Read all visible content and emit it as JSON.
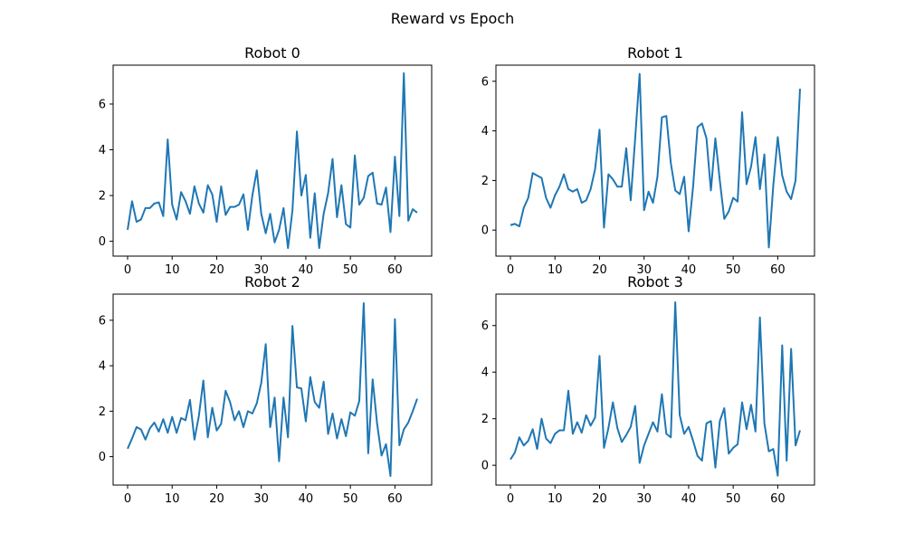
{
  "figure": {
    "suptitle": "Reward vs Epoch",
    "line_color": "#1f77b4"
  },
  "chart_data": [
    {
      "type": "line",
      "title": "Robot 0",
      "xlabel": "",
      "ylabel": "",
      "xlim": [
        -3.25,
        68.25
      ],
      "ylim": [
        -0.65,
        7.7
      ],
      "xticks": [
        0,
        10,
        20,
        30,
        40,
        50,
        60
      ],
      "yticks": [
        0,
        2,
        4,
        6
      ],
      "grid": false,
      "x": [
        0,
        1,
        2,
        3,
        4,
        5,
        6,
        7,
        8,
        9,
        10,
        11,
        12,
        13,
        14,
        15,
        16,
        17,
        18,
        19,
        20,
        21,
        22,
        23,
        24,
        25,
        26,
        27,
        28,
        29,
        30,
        31,
        32,
        33,
        34,
        35,
        36,
        37,
        38,
        39,
        40,
        41,
        42,
        43,
        44,
        45,
        46,
        47,
        48,
        49,
        50,
        51,
        52,
        53,
        54,
        55,
        56,
        57,
        58,
        59,
        60,
        61,
        62,
        63,
        64,
        65
      ],
      "series": [
        {
          "values": [
            0.5,
            1.75,
            0.85,
            0.95,
            1.45,
            1.45,
            1.65,
            1.7,
            1.1,
            4.45,
            1.6,
            0.95,
            2.15,
            1.75,
            1.2,
            2.4,
            1.65,
            1.25,
            2.45,
            2.05,
            0.85,
            2.4,
            1.15,
            1.5,
            1.5,
            1.6,
            2.05,
            0.5,
            2.0,
            3.1,
            1.2,
            0.35,
            1.2,
            -0.05,
            0.5,
            1.45,
            -0.3,
            1.35,
            4.8,
            2.0,
            2.9,
            0.15,
            2.1,
            -0.3,
            1.2,
            2.1,
            3.6,
            1.05,
            2.45,
            0.75,
            0.6,
            3.75,
            1.6,
            1.9,
            2.85,
            3.0,
            1.65,
            1.6,
            2.35,
            0.4,
            3.7,
            1.1,
            7.35,
            0.9,
            1.4,
            1.25
          ]
        }
      ]
    },
    {
      "type": "line",
      "title": "Robot 1",
      "xlabel": "",
      "ylabel": "",
      "xlim": [
        -3.25,
        68.25
      ],
      "ylim": [
        -1.05,
        6.65
      ],
      "xticks": [
        0,
        10,
        20,
        30,
        40,
        50,
        60
      ],
      "yticks": [
        0,
        2,
        4,
        6
      ],
      "grid": false,
      "x": [
        0,
        1,
        2,
        3,
        4,
        5,
        6,
        7,
        8,
        9,
        10,
        11,
        12,
        13,
        14,
        15,
        16,
        17,
        18,
        19,
        20,
        21,
        22,
        23,
        24,
        25,
        26,
        27,
        28,
        29,
        30,
        31,
        32,
        33,
        34,
        35,
        36,
        37,
        38,
        39,
        40,
        41,
        42,
        43,
        44,
        45,
        46,
        47,
        48,
        49,
        50,
        51,
        52,
        53,
        54,
        55,
        56,
        57,
        58,
        59,
        60,
        61,
        62,
        63,
        64,
        65
      ],
      "series": [
        {
          "values": [
            0.2,
            0.25,
            0.15,
            0.9,
            1.3,
            2.3,
            2.2,
            2.1,
            1.3,
            0.9,
            1.4,
            1.75,
            2.25,
            1.65,
            1.55,
            1.65,
            1.1,
            1.2,
            1.65,
            2.45,
            4.05,
            0.1,
            2.25,
            2.05,
            1.75,
            1.75,
            3.3,
            1.2,
            3.7,
            6.3,
            0.8,
            1.55,
            1.1,
            2.15,
            4.55,
            4.6,
            2.7,
            1.6,
            1.45,
            2.15,
            -0.05,
            1.75,
            4.15,
            4.3,
            3.7,
            1.6,
            3.7,
            2.0,
            0.45,
            0.75,
            1.3,
            1.15,
            4.75,
            1.85,
            2.55,
            3.75,
            1.65,
            3.05,
            -0.7,
            1.8,
            3.75,
            2.2,
            1.55,
            1.25,
            2.0,
            5.7
          ]
        }
      ]
    },
    {
      "type": "line",
      "title": "Robot 2",
      "xlabel": "",
      "ylabel": "",
      "xlim": [
        -3.25,
        68.25
      ],
      "ylim": [
        -1.25,
        7.15
      ],
      "xticks": [
        0,
        10,
        20,
        30,
        40,
        50,
        60
      ],
      "yticks": [
        0,
        2,
        4,
        6
      ],
      "grid": false,
      "x": [
        0,
        1,
        2,
        3,
        4,
        5,
        6,
        7,
        8,
        9,
        10,
        11,
        12,
        13,
        14,
        15,
        16,
        17,
        18,
        19,
        20,
        21,
        22,
        23,
        24,
        25,
        26,
        27,
        28,
        29,
        30,
        31,
        32,
        33,
        34,
        35,
        36,
        37,
        38,
        39,
        40,
        41,
        42,
        43,
        44,
        45,
        46,
        47,
        48,
        49,
        50,
        51,
        52,
        53,
        54,
        55,
        56,
        57,
        58,
        59,
        60,
        61,
        62,
        63,
        64,
        65
      ],
      "series": [
        {
          "values": [
            0.35,
            0.8,
            1.3,
            1.2,
            0.75,
            1.25,
            1.5,
            1.1,
            1.65,
            1.05,
            1.75,
            1.05,
            1.7,
            1.6,
            2.5,
            0.75,
            1.8,
            3.35,
            0.85,
            2.15,
            1.15,
            1.45,
            2.9,
            2.4,
            1.6,
            2.0,
            1.3,
            2.0,
            1.9,
            2.35,
            3.25,
            4.95,
            1.3,
            2.6,
            -0.2,
            2.6,
            0.85,
            5.75,
            3.05,
            3.0,
            1.55,
            3.5,
            2.4,
            2.15,
            3.3,
            1.0,
            1.9,
            0.8,
            1.65,
            0.9,
            1.95,
            1.8,
            2.45,
            6.75,
            0.15,
            3.4,
            1.45,
            0.05,
            0.55,
            -0.85,
            6.05,
            0.5,
            1.2,
            1.5,
            2.0,
            2.55
          ]
        }
      ]
    },
    {
      "type": "line",
      "title": "Robot 3",
      "xlabel": "",
      "ylabel": "",
      "xlim": [
        -3.25,
        68.25
      ],
      "ylim": [
        -0.85,
        7.35
      ],
      "xticks": [
        0,
        10,
        20,
        30,
        40,
        50,
        60
      ],
      "yticks": [
        0,
        2,
        4,
        6
      ],
      "grid": false,
      "x": [
        0,
        1,
        2,
        3,
        4,
        5,
        6,
        7,
        8,
        9,
        10,
        11,
        12,
        13,
        14,
        15,
        16,
        17,
        18,
        19,
        20,
        21,
        22,
        23,
        24,
        25,
        26,
        27,
        28,
        29,
        30,
        31,
        32,
        33,
        34,
        35,
        36,
        37,
        38,
        39,
        40,
        41,
        42,
        43,
        44,
        45,
        46,
        47,
        48,
        49,
        50,
        51,
        52,
        53,
        54,
        55,
        56,
        57,
        58,
        59,
        60,
        61,
        62,
        63,
        64,
        65
      ],
      "series": [
        {
          "values": [
            0.25,
            0.55,
            1.2,
            0.85,
            1.05,
            1.55,
            0.7,
            2.0,
            1.15,
            0.95,
            1.35,
            1.5,
            1.5,
            3.2,
            1.35,
            1.85,
            1.4,
            2.15,
            1.7,
            2.05,
            4.7,
            0.75,
            1.6,
            2.7,
            1.6,
            1.0,
            1.3,
            1.65,
            2.55,
            0.1,
            0.85,
            1.35,
            1.85,
            1.45,
            3.05,
            1.35,
            1.2,
            7.0,
            2.15,
            1.35,
            1.65,
            1.05,
            0.4,
            0.2,
            1.8,
            1.9,
            -0.1,
            1.9,
            2.45,
            0.5,
            0.75,
            0.9,
            2.7,
            1.55,
            2.6,
            1.45,
            6.35,
            1.8,
            0.6,
            0.7,
            -0.45,
            5.15,
            0.2,
            5.0,
            0.85,
            1.5
          ]
        }
      ]
    }
  ]
}
